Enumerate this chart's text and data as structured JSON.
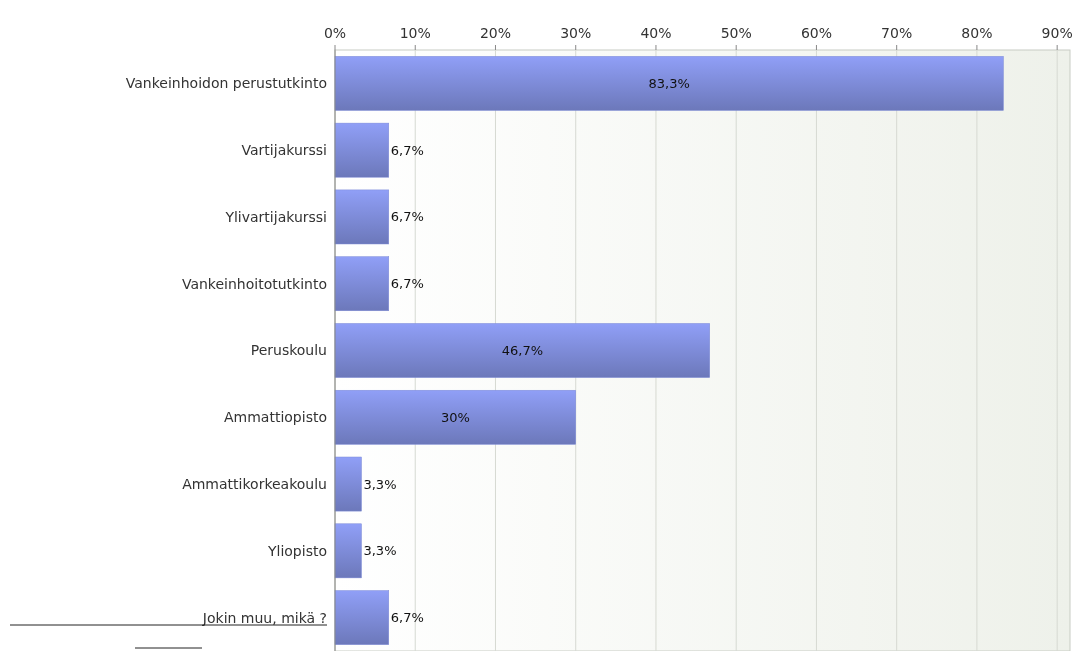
{
  "chart_data": {
    "type": "bar",
    "orientation": "horizontal",
    "categories": [
      "Vankeinhoidon perustutkinto",
      "Vartijakurssi",
      "Ylivartijakurssi",
      "Vankeinhoitotutkinto",
      "Peruskoulu",
      "Ammattiopisto",
      "Ammattikorkeakoulu",
      "Yliopisto",
      "Jokin muu, mikä ?"
    ],
    "values": [
      83.3,
      6.7,
      6.7,
      6.7,
      46.7,
      30,
      3.3,
      3.3,
      6.7
    ],
    "value_labels": [
      "83,3%",
      "6,7%",
      "6,7%",
      "6,7%",
      "46,7%",
      "30%",
      "3,3%",
      "3,3%",
      "6,7%"
    ],
    "color": "#7d8ad6",
    "xlim": [
      0,
      91.6
    ],
    "xticks": [
      {
        "value": 0,
        "label": "0%"
      },
      {
        "value": 10,
        "label": "10%"
      },
      {
        "value": 20,
        "label": "20%"
      },
      {
        "value": 30,
        "label": "30%"
      },
      {
        "value": 40,
        "label": "40%"
      },
      {
        "value": 50,
        "label": "50%"
      },
      {
        "value": 60,
        "label": "60%"
      },
      {
        "value": 70,
        "label": "70%"
      },
      {
        "value": 80,
        "label": "80%"
      },
      {
        "value": 90,
        "label": "90%"
      }
    ],
    "grid": "x"
  }
}
